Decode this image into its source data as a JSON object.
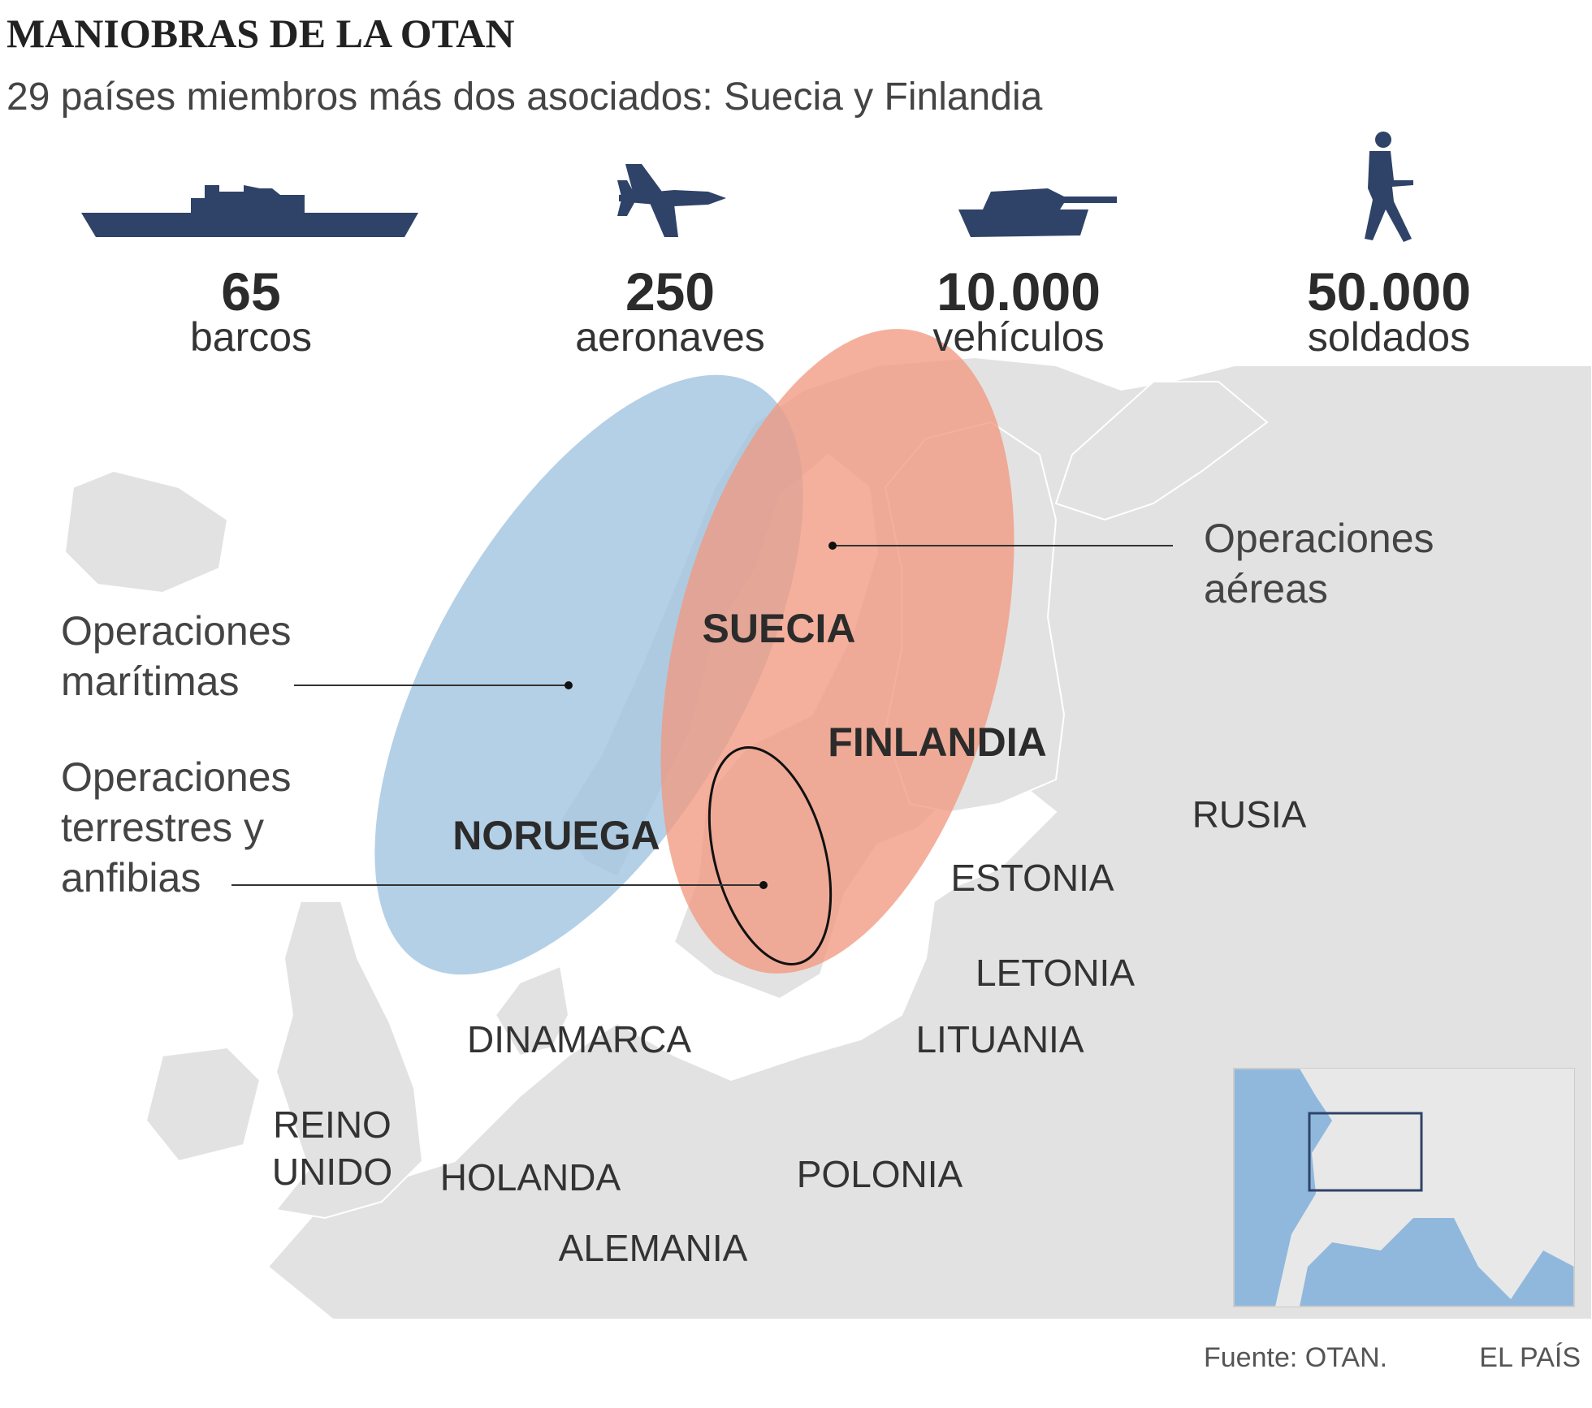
{
  "header": {
    "title": "MANIOBRAS DE LA OTAN",
    "subtitle": "29 países miembros más dos asociados: Suecia y Finlandia"
  },
  "stats": [
    {
      "value": "65",
      "label": "barcos"
    },
    {
      "value": "250",
      "label": "aeronaves"
    },
    {
      "value": "10.000",
      "label": "vehículos"
    },
    {
      "value": "50.000",
      "label": "soldados"
    }
  ],
  "operations": [
    {
      "lines": [
        "Operaciones",
        "aéreas"
      ]
    },
    {
      "lines": [
        "Operaciones",
        "marítimas"
      ]
    },
    {
      "lines": [
        "Operaciones",
        "terrestres y",
        "anfibias"
      ]
    }
  ],
  "countries": [
    {
      "lines": [
        "SUECIA"
      ]
    },
    {
      "lines": [
        "FINLANDIA"
      ]
    },
    {
      "lines": [
        "NORUEGA"
      ]
    },
    {
      "lines": [
        "RUSIA"
      ]
    },
    {
      "lines": [
        "ESTONIA"
      ]
    },
    {
      "lines": [
        "LETONIA"
      ]
    },
    {
      "lines": [
        "LITUANIA"
      ]
    },
    {
      "lines": [
        "DINAMARCA"
      ]
    },
    {
      "lines": [
        "REINO",
        "UNIDO"
      ]
    },
    {
      "lines": [
        "HOLANDA"
      ]
    },
    {
      "lines": [
        "POLONIA"
      ]
    },
    {
      "lines": [
        "ALEMANIA"
      ]
    }
  ],
  "footer": {
    "source": "Fuente: OTAN.",
    "brand": "EL PAÍS"
  }
}
